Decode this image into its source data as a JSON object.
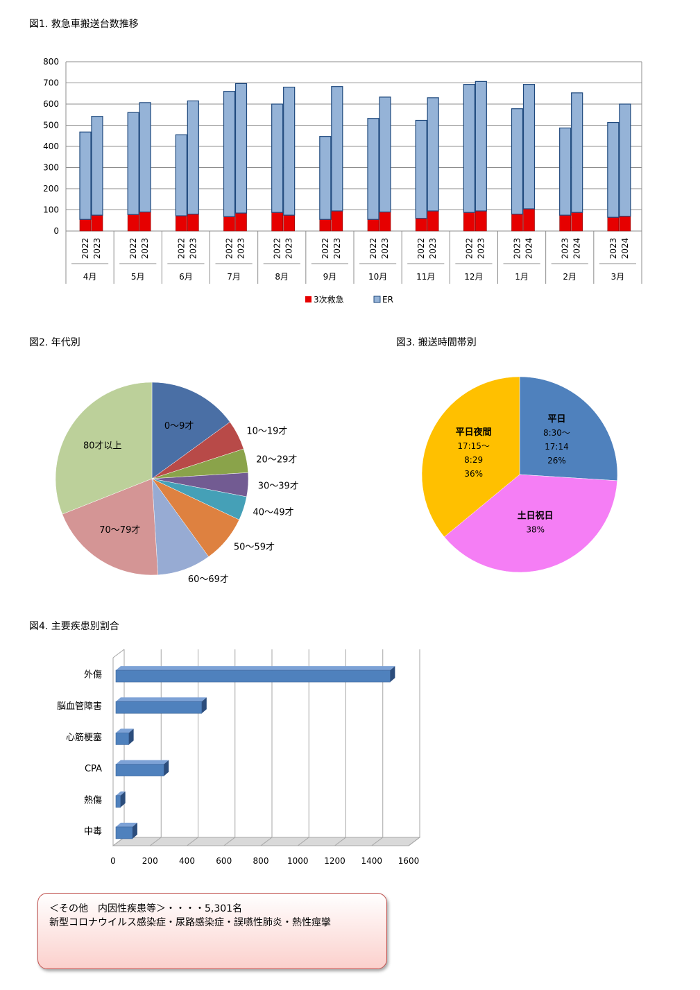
{
  "fig1": {
    "title": "図1. 救急車搬送台数推移",
    "legend": [
      "3次救急",
      "ER"
    ],
    "colors": {
      "tertiary": "#e60000",
      "er": "#95b3d7",
      "er_edge": "#1f497d"
    },
    "ylim": [
      0,
      800
    ],
    "yticks": [
      "0",
      "100",
      "200",
      "300",
      "400",
      "500",
      "600",
      "700",
      "800"
    ]
  },
  "fig2": {
    "title": "図2. 年代別",
    "colors": [
      "#4a6fa5",
      "#b84a48",
      "#8aa34a",
      "#725b92",
      "#45a0b7",
      "#de8140",
      "#97abd3",
      "#d49595",
      "#bcd09a"
    ]
  },
  "fig3": {
    "title": "図3. 搬送時間帯別",
    "colors": [
      "#4f81bd",
      "#f57ef5",
      "#ffc000"
    ],
    "slice_labels": [
      [
        "平日",
        "8:30～",
        "17:14",
        "26%"
      ],
      [
        "土日祝日",
        "38%"
      ],
      [
        "平日夜間",
        "17:15～",
        "8:29",
        "36%"
      ]
    ]
  },
  "fig4": {
    "title": "図4. 主要疾患別割合",
    "xticks": [
      "0",
      "200",
      "400",
      "600",
      "800",
      "1000",
      "1200",
      "1400",
      "1600"
    ],
    "color": "#4f81bd"
  },
  "note": {
    "line1": "＜その他　内因性疾患等＞・・・・5,301名",
    "line2": "新型コロナウイルス感染症・尿路感染症・誤嚥性肺炎・熱性痙攣"
  },
  "chart_data": [
    {
      "type": "bar",
      "title": "図1. 救急車搬送台数推移",
      "stacked": true,
      "months": [
        "4月",
        "5月",
        "6月",
        "7月",
        "8月",
        "9月",
        "10月",
        "11月",
        "12月",
        "1月",
        "2月",
        "3月"
      ],
      "years": [
        [
          "2022",
          "2023"
        ],
        [
          "2022",
          "2023"
        ],
        [
          "2022",
          "2023"
        ],
        [
          "2022",
          "2023"
        ],
        [
          "2022",
          "2023"
        ],
        [
          "2022",
          "2023"
        ],
        [
          "2022",
          "2023"
        ],
        [
          "2022",
          "2023"
        ],
        [
          "2022",
          "2023"
        ],
        [
          "2023",
          "2024"
        ],
        [
          "2023",
          "2024"
        ],
        [
          "2023",
          "2024"
        ]
      ],
      "series": [
        {
          "name": "3次救急",
          "values": [
            [
              55,
              75
            ],
            [
              78,
              90
            ],
            [
              72,
              80
            ],
            [
              68,
              85
            ],
            [
              88,
              75
            ],
            [
              55,
              95
            ],
            [
              55,
              90
            ],
            [
              60,
              95
            ],
            [
              88,
              95
            ],
            [
              80,
              105
            ],
            [
              75,
              88
            ],
            [
              65,
              70
            ]
          ]
        },
        {
          "name": "ER",
          "values": [
            [
              413,
              467
            ],
            [
              482,
              517
            ],
            [
              383,
              535
            ],
            [
              592,
              612
            ],
            [
              512,
              605
            ],
            [
              392,
              588
            ],
            [
              477,
              543
            ],
            [
              463,
              535
            ],
            [
              605,
              612
            ],
            [
              498,
              588
            ],
            [
              412,
              565
            ],
            [
              448,
              530
            ]
          ]
        }
      ],
      "ylim": [
        0,
        800
      ],
      "legend": "bottom"
    },
    {
      "type": "pie",
      "title": "図2. 年代別",
      "labels": [
        "0～9才",
        "10～19才",
        "20～29才",
        "30～39才",
        "40～49才",
        "50～59才",
        "60～69才",
        "70～79才",
        "80才以上"
      ],
      "values": [
        15,
        5,
        4,
        4,
        4,
        8,
        9,
        20,
        31
      ]
    },
    {
      "type": "pie",
      "title": "図3. 搬送時間帯別",
      "labels": [
        "平日 8:30～17:14",
        "土日祝日",
        "平日夜間 17:15～8:29"
      ],
      "values": [
        26,
        38,
        36
      ]
    },
    {
      "type": "bar",
      "orientation": "horizontal",
      "title": "図4. 主要疾患別割合",
      "categories": [
        "外傷",
        "脳血管障害",
        "心筋梗塞",
        "CPA",
        "熱傷",
        "中毒"
      ],
      "values": [
        1500,
        480,
        85,
        275,
        40,
        105
      ],
      "xlim": [
        0,
        1600
      ]
    }
  ]
}
